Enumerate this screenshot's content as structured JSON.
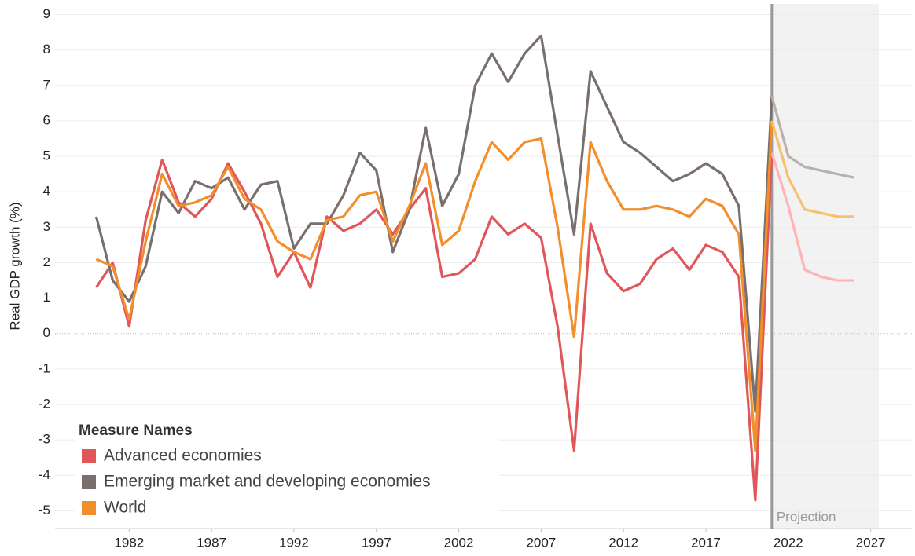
{
  "chart_data": {
    "type": "line",
    "y_label": "Real GDP growth (%)",
    "x": [
      1980,
      1981,
      1982,
      1983,
      1984,
      1985,
      1986,
      1987,
      1988,
      1989,
      1990,
      1991,
      1992,
      1993,
      1994,
      1995,
      1996,
      1997,
      1998,
      1999,
      2000,
      2001,
      2002,
      2003,
      2004,
      2005,
      2006,
      2007,
      2008,
      2009,
      2010,
      2011,
      2012,
      2013,
      2014,
      2015,
      2016,
      2017,
      2018,
      2019,
      2020,
      2021,
      2022,
      2023,
      2024,
      2025,
      2026
    ],
    "series": [
      {
        "name": "Advanced economies",
        "color": "#e15759",
        "projection_color": "#ffb3b5",
        "values": [
          1.3,
          2.0,
          0.2,
          3.2,
          4.9,
          3.7,
          3.3,
          3.8,
          4.8,
          4.0,
          3.1,
          1.6,
          2.3,
          1.3,
          3.3,
          2.9,
          3.1,
          3.5,
          2.8,
          3.5,
          4.1,
          1.6,
          1.7,
          2.1,
          3.3,
          2.8,
          3.1,
          2.7,
          0.2,
          -3.3,
          3.1,
          1.7,
          1.2,
          1.4,
          2.1,
          2.4,
          1.8,
          2.5,
          2.3,
          1.6,
          -4.7,
          5.1,
          3.6,
          1.8,
          1.6,
          1.5,
          1.5
        ]
      },
      {
        "name": "Emerging market and developing economies",
        "color": "#79706e",
        "projection_color": "#bab0ac",
        "values": [
          3.3,
          1.5,
          0.9,
          1.9,
          4.0,
          3.4,
          4.3,
          4.1,
          4.4,
          3.5,
          4.2,
          4.3,
          2.4,
          3.1,
          3.1,
          3.9,
          5.1,
          4.6,
          2.3,
          3.5,
          5.8,
          3.6,
          4.5,
          7.0,
          7.9,
          7.1,
          7.9,
          8.4,
          5.6,
          2.8,
          7.4,
          6.4,
          5.4,
          5.1,
          4.7,
          4.3,
          4.5,
          4.8,
          4.5,
          3.6,
          -2.2,
          6.7,
          5.0,
          4.7,
          4.6,
          4.5,
          4.4
        ]
      },
      {
        "name": "World",
        "color": "#f28e2b",
        "projection_color": "#f5c26b",
        "values": [
          2.1,
          1.9,
          0.4,
          2.6,
          4.5,
          3.6,
          3.7,
          3.9,
          4.7,
          3.8,
          3.5,
          2.6,
          2.3,
          2.1,
          3.2,
          3.3,
          3.9,
          4.0,
          2.6,
          3.6,
          4.8,
          2.5,
          2.9,
          4.3,
          5.4,
          4.9,
          5.4,
          5.5,
          3.0,
          -0.1,
          5.4,
          4.3,
          3.5,
          3.5,
          3.6,
          3.5,
          3.3,
          3.8,
          3.6,
          2.8,
          -3.3,
          6.0,
          4.4,
          3.5,
          3.4,
          3.3,
          3.3
        ]
      }
    ],
    "xlim": [
      1977.5,
      2029.5
    ],
    "xticks": [
      1982,
      1987,
      1992,
      1997,
      2002,
      2007,
      2012,
      2017,
      2022,
      2027
    ],
    "ylim": [
      -5.5,
      9.3
    ],
    "yticks": [
      -5,
      -4,
      -3,
      -2,
      -1,
      0,
      1,
      2,
      3,
      4,
      5,
      6,
      7,
      8,
      9
    ],
    "grid": true,
    "legend": {
      "title": "Measure Names",
      "position": "lower left"
    },
    "projection": {
      "start": 2021,
      "end": 2027.5,
      "label": "Projection"
    }
  }
}
